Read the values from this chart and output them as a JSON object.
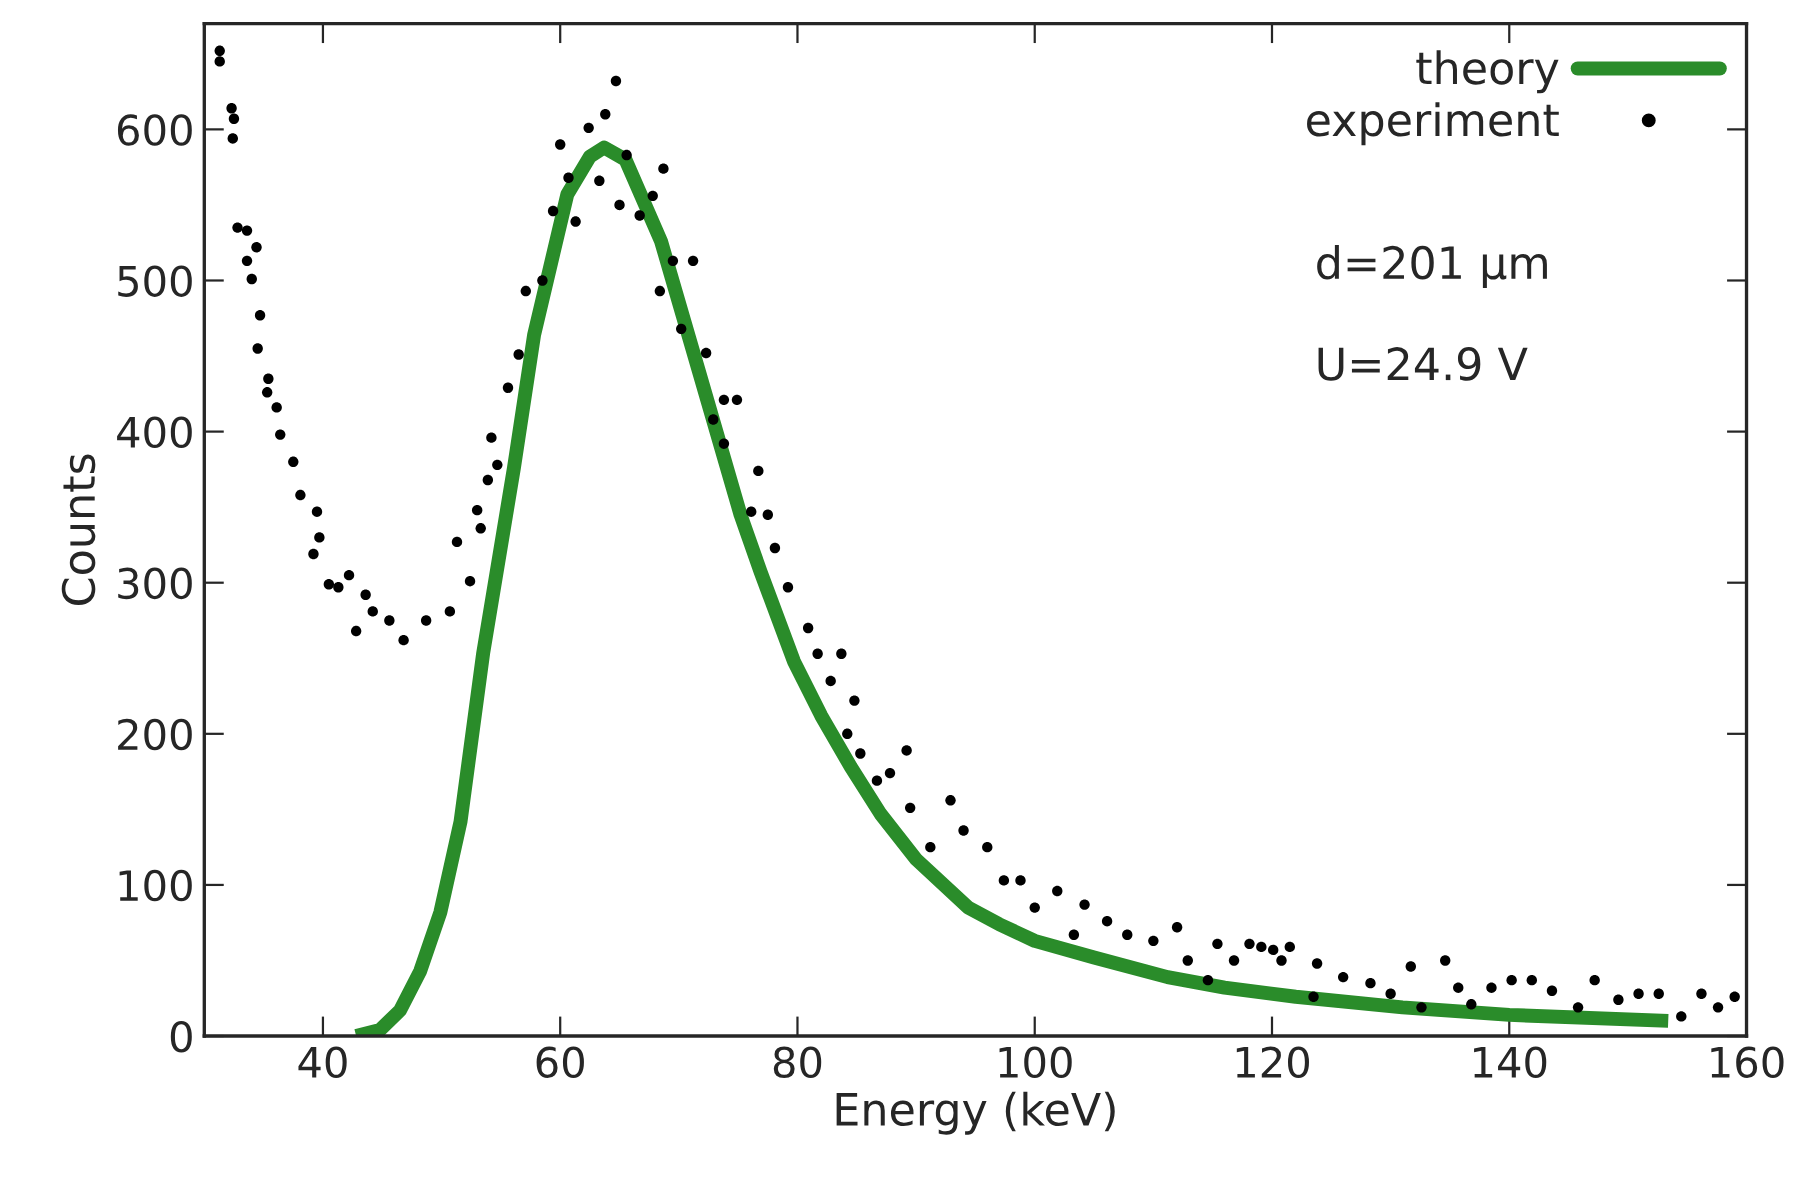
{
  "chart_data": {
    "type": "scatter",
    "xlabel": "Energy (keV)",
    "ylabel": "Counts",
    "xlim": [
      30,
      160
    ],
    "ylim": [
      0,
      670
    ],
    "xticks": [
      40,
      60,
      80,
      100,
      120,
      140,
      160
    ],
    "yticks": [
      0,
      100,
      200,
      300,
      400,
      500,
      600
    ],
    "grid": false,
    "legend": "top right",
    "annotations": [
      "d=201 μm",
      "U=24.9 V"
    ],
    "series": [
      {
        "name": "theory",
        "type": "line",
        "color": "#2a8c2a",
        "marker": "none",
        "line_style": "solid",
        "x": [
          42.8,
          44.8,
          46.5,
          48.2,
          49.9,
          51.6,
          53.5,
          56.1,
          57.8,
          60.6,
          62.5,
          63.7,
          65.5,
          68.5,
          71.8,
          75.2,
          76.9,
          79.7,
          82,
          84.5,
          87,
          90,
          94.4,
          97,
          100,
          105,
          111.2,
          116,
          122,
          131,
          140,
          153.4
        ],
        "values": [
          0,
          4,
          17,
          43,
          82,
          142,
          253,
          376,
          464,
          557,
          582,
          588,
          580,
          526,
          437,
          345,
          307,
          248,
          212,
          178,
          147,
          117,
          85,
          74,
          63,
          52,
          39,
          32,
          26,
          19,
          14,
          10
        ]
      },
      {
        "name": "experiment",
        "color": "#000000",
        "marker": "circle",
        "x": [
          31.3,
          31.3,
          32.3,
          32.5,
          32.4,
          32.8,
          33.6,
          34.4,
          33.6,
          34.0,
          34.7,
          34.5,
          35.4,
          35.3,
          36.1,
          36.4,
          37.5,
          38.1,
          39.5,
          39.7,
          39.2,
          40.5,
          41.3,
          42.2,
          43.6,
          44.2,
          42.8,
          45.6,
          46.8,
          48.7,
          50.7,
          51.3,
          52.4,
          53.3,
          53.0,
          54.2,
          54.7,
          53.9,
          55.6,
          56.5,
          57.1,
          58.5,
          59.4,
          60.0,
          60.7,
          61.3,
          62.4,
          63.3,
          63.8,
          64.7,
          65.0,
          65.6,
          66.7,
          67.8,
          68.7,
          68.4,
          69.5,
          70.2,
          71.2,
          72.3,
          72.9,
          73.8,
          74.9,
          73.8,
          76.7,
          76.1,
          78.1,
          77.5,
          79.2,
          80.9,
          81.7,
          83.7,
          82.8,
          84.8,
          84.2,
          85.3,
          86.7,
          89.2,
          87.8,
          89.5,
          91.2,
          92.9,
          94.0,
          96.0,
          97.4,
          98.8,
          100.0,
          101.9,
          104.2,
          103.3,
          106.1,
          107.8,
          110.0,
          112.0,
          112.9,
          114.6,
          115.4,
          116.8,
          118.1,
          119.1,
          120.1,
          120.8,
          121.5,
          123.5,
          123.8,
          126.0,
          128.3,
          130.0,
          131.7,
          132.6,
          134.6,
          135.7,
          136.8,
          138.5,
          140.2,
          141.9,
          143.6,
          145.8,
          147.2,
          149.2,
          150.9,
          152.6,
          154.5,
          156.2,
          157.6,
          159.0
        ],
        "values": [
          652,
          645,
          614,
          607,
          594,
          535,
          533,
          522,
          513,
          501,
          477,
          455,
          435,
          426,
          416,
          398,
          380,
          358,
          347,
          330,
          319,
          299,
          297,
          305,
          292,
          281,
          268,
          275,
          262,
          275,
          281,
          327,
          301,
          336,
          348,
          396,
          378,
          368,
          429,
          451,
          493,
          500,
          546,
          590,
          568,
          539,
          601,
          566,
          610,
          632,
          550,
          583,
          543,
          556,
          574,
          493,
          513,
          468,
          513,
          452,
          408,
          421,
          421,
          392,
          374,
          347,
          323,
          345,
          297,
          270,
          253,
          253,
          235,
          222,
          200,
          187,
          169,
          189,
          174,
          151,
          125,
          156,
          136,
          125,
          103,
          103,
          85,
          96,
          87,
          67,
          76,
          67,
          63,
          72,
          50,
          37,
          61,
          50,
          61,
          59,
          57,
          50,
          59,
          26,
          48,
          39,
          35,
          28,
          46,
          19,
          50,
          32,
          21,
          32,
          37,
          37,
          30,
          19,
          37,
          24,
          28,
          28,
          13,
          28,
          19,
          26
        ]
      }
    ]
  }
}
